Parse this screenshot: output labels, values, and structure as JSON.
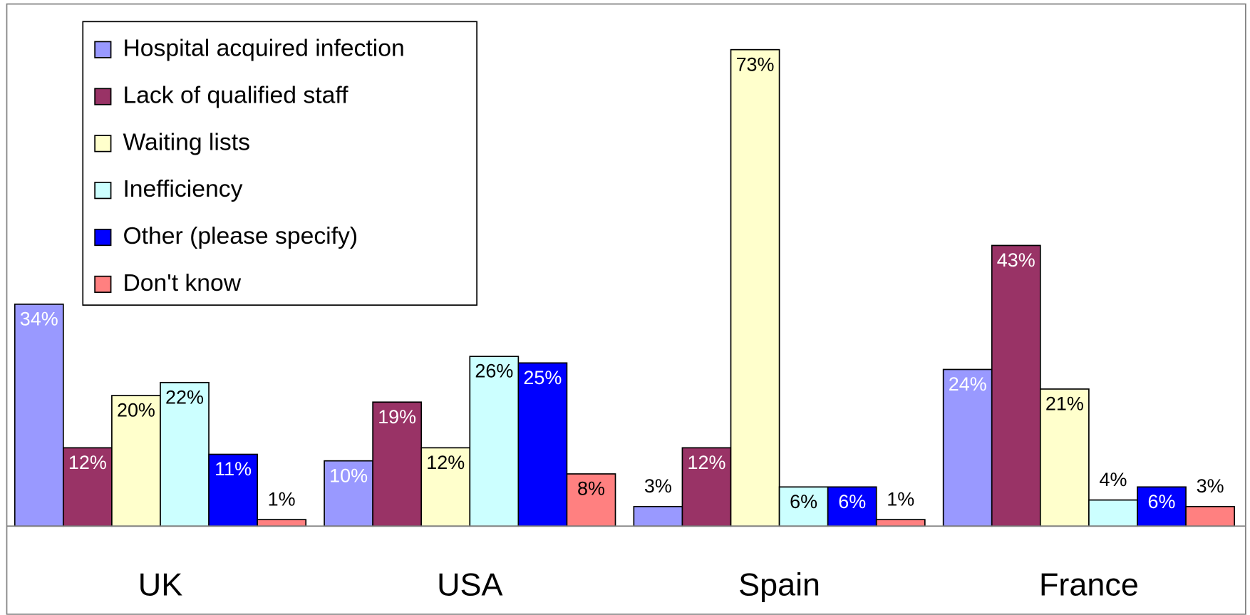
{
  "chart_data": {
    "type": "bar",
    "categories": [
      "UK",
      "USA",
      "Spain",
      "France"
    ],
    "series": [
      {
        "name": "Hospital acquired infection",
        "color": "#9999ff",
        "label_color": "#ffffff",
        "values": [
          34,
          10,
          3,
          24
        ],
        "value_labels": [
          "34%",
          "10%",
          "3%",
          "24%"
        ]
      },
      {
        "name": "Lack of qualified staff",
        "color": "#993366",
        "label_color": "#ffffff",
        "values": [
          12,
          19,
          12,
          43
        ],
        "value_labels": [
          "12%",
          "19%",
          "12%",
          "43%"
        ]
      },
      {
        "name": "Waiting lists",
        "color": "#ffffcc",
        "label_color": "#000000",
        "values": [
          20,
          12,
          73,
          21
        ],
        "value_labels": [
          "20%",
          "12%",
          "73%",
          "21%"
        ]
      },
      {
        "name": "Inefficiency",
        "color": "#ccffff",
        "label_color": "#000000",
        "values": [
          22,
          26,
          6,
          4
        ],
        "value_labels": [
          "22%",
          "26%",
          "6%",
          "4%"
        ]
      },
      {
        "name": "Other (please specify)",
        "color": "#0000ff",
        "label_color": "#ffffff",
        "values": [
          11,
          25,
          6,
          6
        ],
        "value_labels": [
          "11%",
          "25%",
          "6%",
          "6%"
        ]
      },
      {
        "name": "Don't know",
        "color": "#ff8080",
        "label_color": "#000000",
        "values": [
          1,
          8,
          1,
          3
        ],
        "value_labels": [
          "1%",
          "8%",
          "1%",
          "3%"
        ]
      }
    ],
    "legend": "top-left"
  }
}
